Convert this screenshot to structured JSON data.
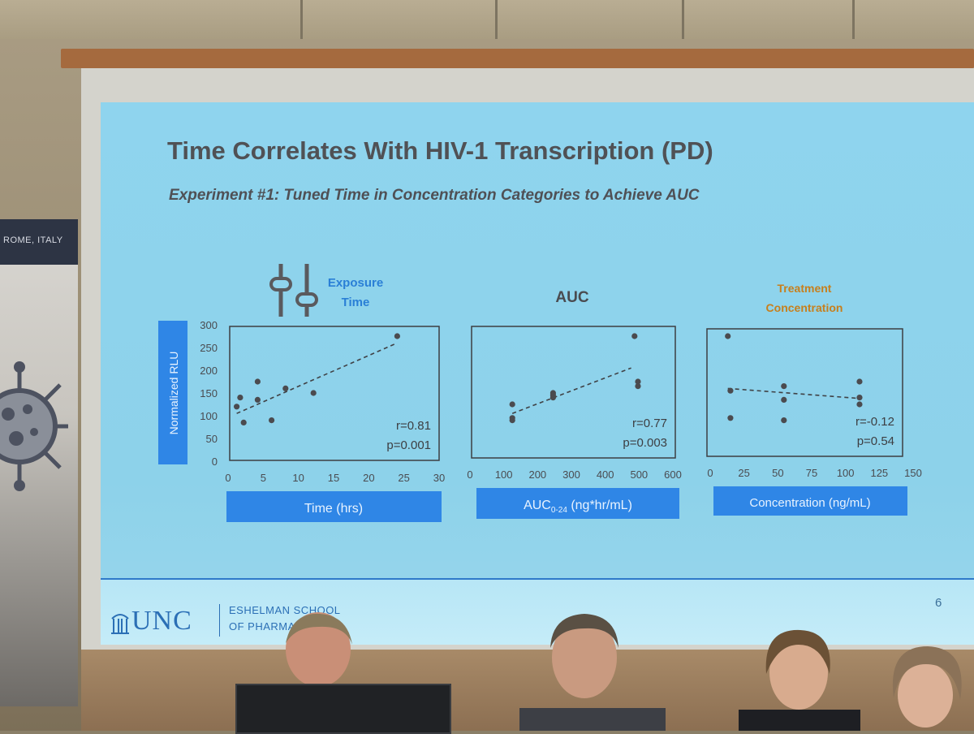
{
  "slide": {
    "title": "Time Correlates With HIV-1 Transcription (PD)",
    "subtitle": "Experiment #1: Tuned Time in Concentration Categories to Achieve AUC",
    "page_number": "6",
    "footer": {
      "logo_text": "UNC",
      "school_line1": "ESHELMAN SCHOOL",
      "school_line2": "OF PHARMA"
    },
    "banner_text": "ROME, ITALY"
  },
  "colors": {
    "slide_background": "#8fd4ee",
    "label_box": "#2f86e6",
    "exposure_label": "#2a7fd6",
    "treatment_label": "#c77f1c",
    "title_text": "#505155"
  },
  "chart_data": [
    {
      "type": "scatter",
      "header": {
        "line1": "Exposure",
        "line2": "Time",
        "icon": "sliders-icon"
      },
      "xlabel": "Time (hrs)",
      "ylabel": "Normalized RLU",
      "xlim": [
        0,
        30
      ],
      "ylim": [
        0,
        300
      ],
      "xticks": [
        "0",
        "5",
        "10",
        "15",
        "20",
        "25",
        "30"
      ],
      "yticks": [
        "0",
        "50",
        "100",
        "150",
        "200",
        "250",
        "300"
      ],
      "points": [
        [
          1,
          120
        ],
        [
          1.5,
          140
        ],
        [
          2,
          85
        ],
        [
          4,
          135
        ],
        [
          4,
          175
        ],
        [
          6,
          90
        ],
        [
          8,
          160
        ],
        [
          12,
          150
        ],
        [
          24,
          275
        ]
      ],
      "trendline": [
        [
          1,
          105
        ],
        [
          24,
          260
        ]
      ],
      "r": "r=0.81",
      "p": "p=0.001"
    },
    {
      "type": "scatter",
      "header": {
        "line1": "AUC",
        "line2": ""
      },
      "xlabel_main": "AUC",
      "xlabel_sub": "0-24",
      "xlabel_rest": " (ng*hr/mL)",
      "xlim": [
        0,
        600
      ],
      "xticks": [
        "0",
        "100",
        "200",
        "300",
        "400",
        "500",
        "600"
      ],
      "points": [
        [
          120,
          125
        ],
        [
          120,
          95
        ],
        [
          120,
          90
        ],
        [
          240,
          150
        ],
        [
          240,
          145
        ],
        [
          240,
          140
        ],
        [
          480,
          275
        ],
        [
          490,
          175
        ],
        [
          490,
          165
        ]
      ],
      "trendline": [
        [
          120,
          105
        ],
        [
          470,
          205
        ]
      ],
      "r": "r=0.77",
      "p": "p=0.003"
    },
    {
      "type": "scatter",
      "header": {
        "line1": "Treatment",
        "line2": "Concentration"
      },
      "xlabel": "Concentration (ng/mL)",
      "xlim": [
        0,
        150
      ],
      "xticks": [
        "0",
        "25",
        "50",
        "75",
        "100",
        "125",
        "150"
      ],
      "points": [
        [
          16,
          275
        ],
        [
          18,
          155
        ],
        [
          18,
          95
        ],
        [
          59,
          165
        ],
        [
          59,
          135
        ],
        [
          59,
          90
        ],
        [
          117,
          175
        ],
        [
          117,
          140
        ],
        [
          117,
          125
        ]
      ],
      "trendline": [
        [
          16,
          160
        ],
        [
          117,
          138
        ]
      ],
      "r": "r=-0.12",
      "p": "p=0.54"
    }
  ]
}
